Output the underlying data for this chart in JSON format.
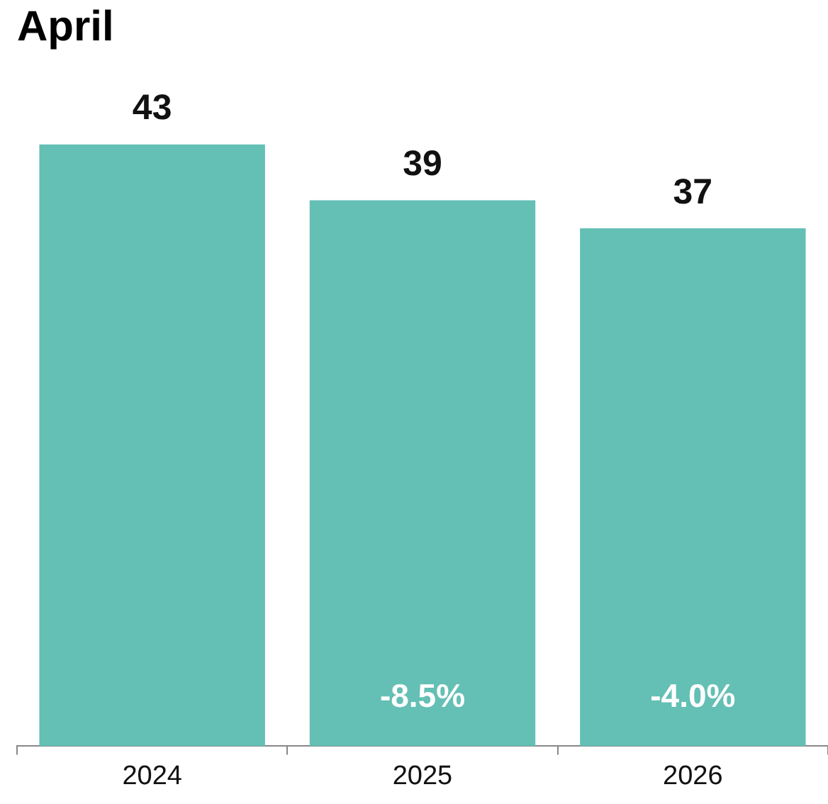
{
  "chart_data": {
    "type": "bar",
    "title": "April",
    "categories": [
      "2024",
      "2025",
      "2026"
    ],
    "values": [
      43,
      39,
      37
    ],
    "color": "#64bfb5",
    "data_labels": true,
    "annotations": [
      "-8.5%",
      "-4.0%"
    ],
    "grid": false,
    "legend": false
  }
}
